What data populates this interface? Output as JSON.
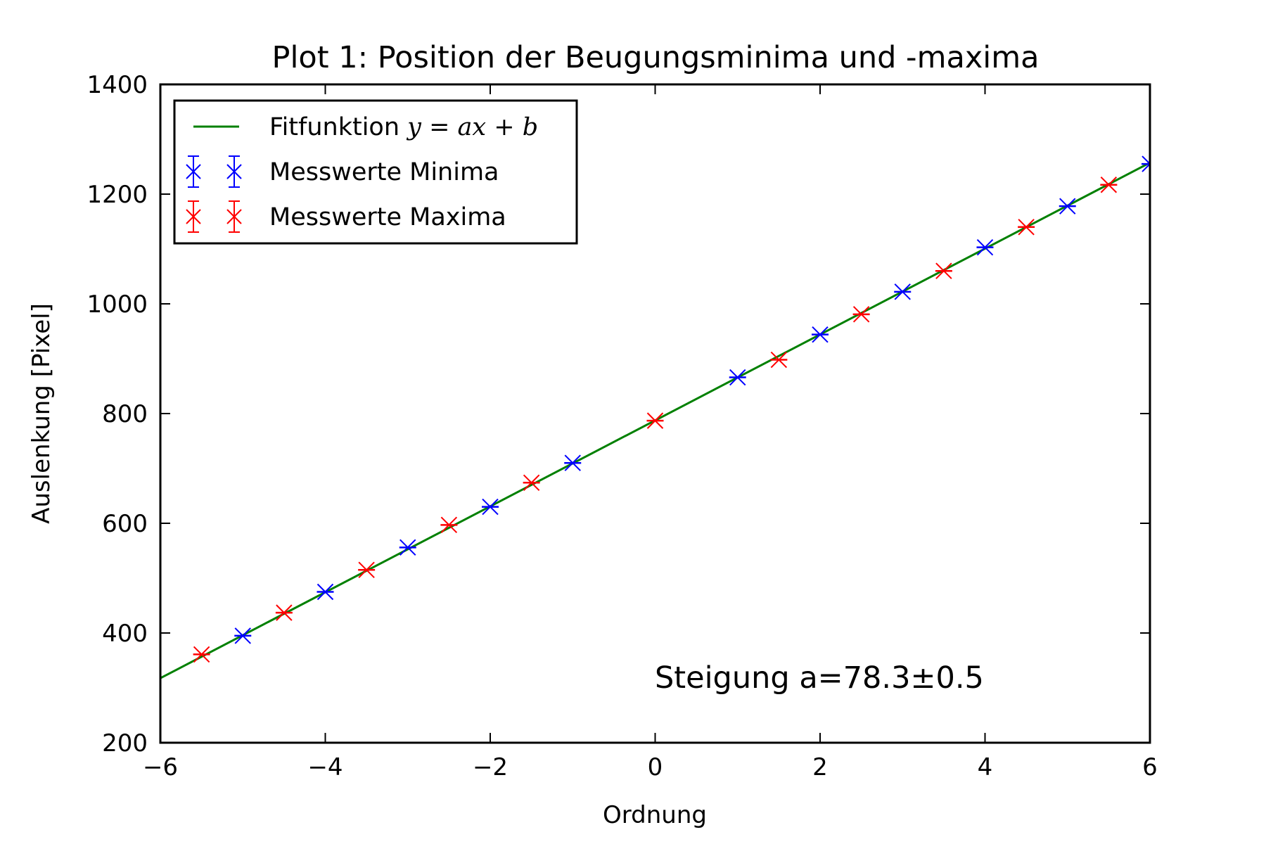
{
  "chart_data": {
    "type": "scatter",
    "title": "Plot 1: Position der Beugungsminima und -maxima",
    "xlabel": "Ordnung",
    "ylabel": "Auslenkung [Pixel]",
    "xlim": [
      -6,
      6
    ],
    "ylim": [
      200,
      1400
    ],
    "xticks": [
      -6,
      -4,
      -2,
      0,
      2,
      4,
      6
    ],
    "yticks": [
      200,
      400,
      600,
      800,
      1000,
      1200,
      1400
    ],
    "xtick_labels": [
      "−6",
      "−4",
      "−2",
      "0",
      "2",
      "4",
      "6"
    ],
    "ytick_labels": [
      "200",
      "400",
      "600",
      "800",
      "1000",
      "1200",
      "1400"
    ],
    "grid": false,
    "legend_position": "top-left",
    "fit": {
      "name_prefix": "Fitfunktion ",
      "name_math": "y = ax + b",
      "slope": 78.3,
      "intercept": 787.5,
      "color": "#008000"
    },
    "series": [
      {
        "name": "Messwerte Minima",
        "color": "#0000ff",
        "marker": "x",
        "x": [
          -5,
          -4,
          -3,
          -2,
          -1,
          1,
          2,
          3,
          4,
          5,
          6
        ],
        "y": [
          395,
          475,
          556,
          630,
          710,
          866,
          944,
          1022,
          1103,
          1178,
          1255
        ]
      },
      {
        "name": "Messwerte Maxima",
        "color": "#ff0000",
        "marker": "x",
        "x": [
          -5.5,
          -4.5,
          -3.5,
          -2.5,
          -1.5,
          0,
          1.5,
          2.5,
          3.5,
          4.5,
          5.5
        ],
        "y": [
          361,
          437,
          515,
          597,
          674,
          787,
          898,
          981,
          1060,
          1140,
          1217
        ]
      }
    ],
    "annotation": "Steigung a=78.3±0.5"
  }
}
